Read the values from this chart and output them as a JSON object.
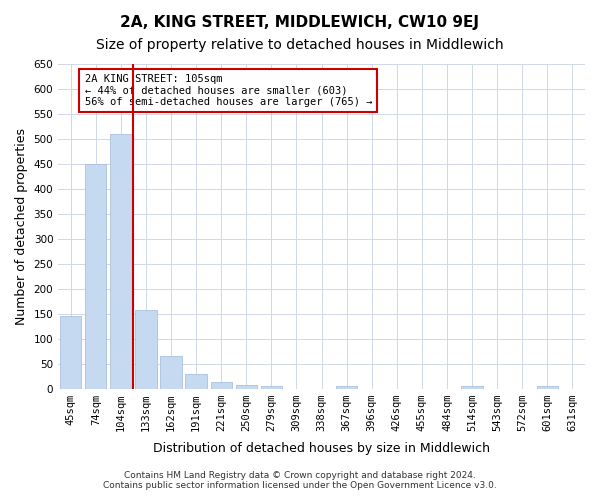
{
  "title": "2A, KING STREET, MIDDLEWICH, CW10 9EJ",
  "subtitle": "Size of property relative to detached houses in Middlewich",
  "xlabel": "Distribution of detached houses by size in Middlewich",
  "ylabel": "Number of detached properties",
  "categories": [
    "45sqm",
    "74sqm",
    "104sqm",
    "133sqm",
    "162sqm",
    "191sqm",
    "221sqm",
    "250sqm",
    "279sqm",
    "309sqm",
    "338sqm",
    "367sqm",
    "396sqm",
    "426sqm",
    "455sqm",
    "484sqm",
    "514sqm",
    "543sqm",
    "572sqm",
    "601sqm",
    "631sqm"
  ],
  "values": [
    145,
    450,
    510,
    158,
    65,
    30,
    13,
    8,
    5,
    0,
    0,
    5,
    0,
    0,
    0,
    0,
    5,
    0,
    0,
    5,
    0
  ],
  "bar_color": "#c5d9f1",
  "bar_edge_color": "#a0b8d8",
  "vline_x": 2.5,
  "vline_color": "#cc0000",
  "annotation_text": "2A KING STREET: 105sqm\n← 44% of detached houses are smaller (603)\n56% of semi-detached houses are larger (765) →",
  "annotation_box_color": "#ffffff",
  "annotation_box_edge": "#cc0000",
  "ylim": [
    0,
    650
  ],
  "yticks": [
    0,
    50,
    100,
    150,
    200,
    250,
    300,
    350,
    400,
    450,
    500,
    550,
    600,
    650
  ],
  "background_color": "#ffffff",
  "grid_color": "#d0d8e8",
  "footer_line1": "Contains HM Land Registry data © Crown copyright and database right 2024.",
  "footer_line2": "Contains public sector information licensed under the Open Government Licence v3.0.",
  "title_fontsize": 11,
  "subtitle_fontsize": 10,
  "tick_fontsize": 7.5,
  "ylabel_fontsize": 9,
  "xlabel_fontsize": 9
}
